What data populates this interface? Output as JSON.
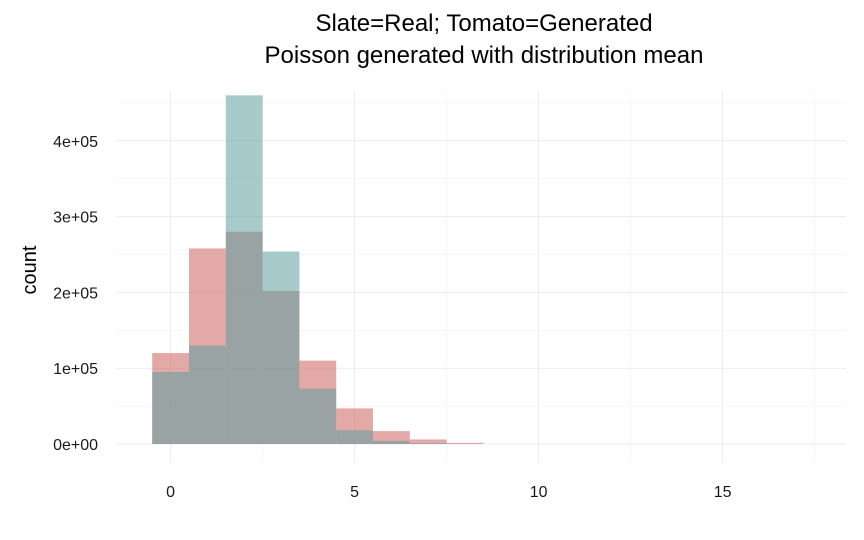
{
  "chart_data": {
    "type": "bar",
    "title_line1": "Slate=Real; Tomato=Generated",
    "title_line2": "Poisson generated with distribution mean",
    "xlabel": "",
    "ylabel": "count",
    "xlim": [
      -1,
      18
    ],
    "ylim": [
      0,
      480000
    ],
    "x_ticks": [
      0,
      5,
      10,
      15
    ],
    "y_ticks": [
      0,
      100000,
      200000,
      300000,
      400000
    ],
    "x_tick_labels": [
      "0",
      "5",
      "10",
      "15"
    ],
    "y_tick_labels": [
      "0e+00",
      "1e+05",
      "2e+05",
      "3e+05",
      "4e+05"
    ],
    "bin_width": 1,
    "grid": true,
    "bins": [
      0,
      1,
      2,
      3,
      4,
      5,
      6,
      7,
      8
    ],
    "series": [
      {
        "color": "#d0706b",
        "opacity": 0.6,
        "values": [
          120000,
          258000,
          280000,
          202000,
          110000,
          47000,
          17000,
          6000,
          1500
        ]
      },
      {
        "color": "#5f9ea0",
        "opacity": 0.55,
        "values": [
          95000,
          130000,
          460000,
          254000,
          73000,
          18000,
          4000,
          1000,
          200
        ]
      }
    ]
  }
}
